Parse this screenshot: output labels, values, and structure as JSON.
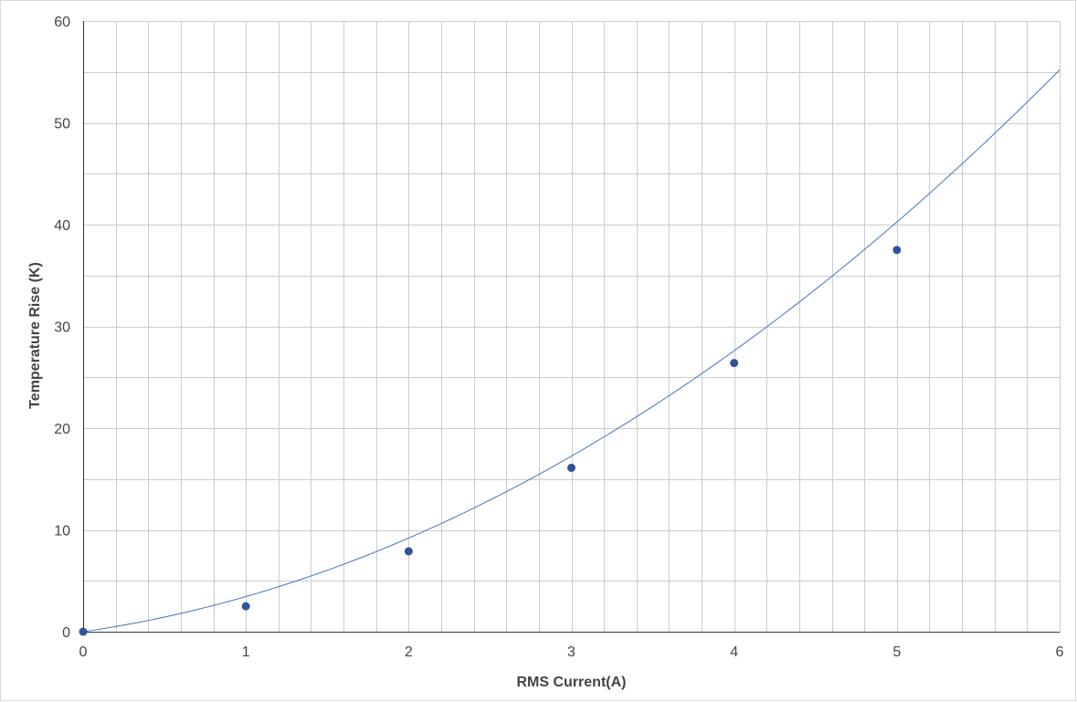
{
  "chart_data": {
    "type": "scatter",
    "xlabel": "RMS Current(A)",
    "ylabel": "Temperature Rise (K)",
    "xlim": [
      0,
      6
    ],
    "ylim": [
      0,
      60
    ],
    "x_ticks": [
      "0",
      "1",
      "2",
      "3",
      "4",
      "5",
      "6"
    ],
    "y_ticks": [
      "0",
      "10",
      "20",
      "30",
      "40",
      "50",
      "60"
    ],
    "grid": true,
    "series": [
      {
        "points": [
          {
            "x": 0,
            "y": 0
          },
          {
            "x": 1,
            "y": 2.5
          },
          {
            "x": 2,
            "y": 7.9
          },
          {
            "x": 3,
            "y": 16.1
          },
          {
            "x": 4,
            "y": 26.4
          },
          {
            "x": 5,
            "y": 37.5
          }
        ],
        "color": "#2f5597"
      }
    ],
    "trendline": {
      "type": "polynomial",
      "coefficients": [
        1.15,
        2.3,
        0
      ],
      "color": "#4472c4"
    },
    "legend": "none"
  }
}
